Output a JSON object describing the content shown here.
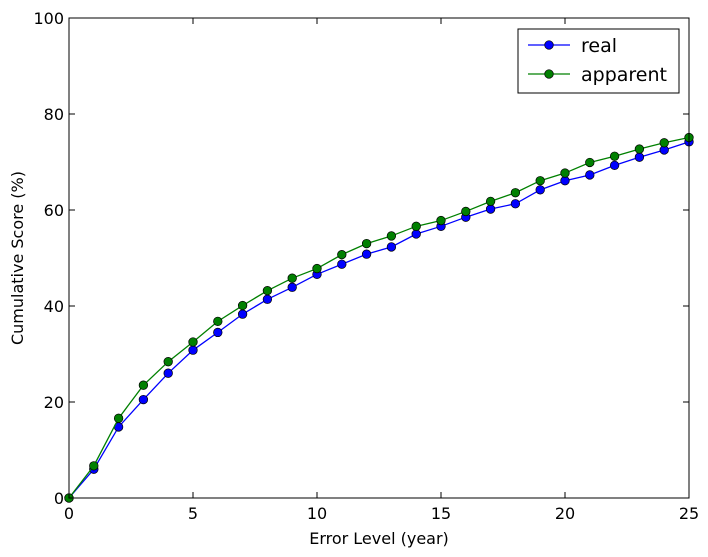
{
  "chart_data": {
    "type": "line",
    "title": "",
    "xlabel": "Error Level (year)",
    "ylabel": "Cumulative Score (%)",
    "xlim": [
      0,
      25
    ],
    "ylim": [
      0,
      100
    ],
    "xticks": [
      0,
      5,
      10,
      15,
      20,
      25
    ],
    "yticks": [
      0,
      20,
      40,
      60,
      80,
      100
    ],
    "xtick_labels": [
      "0",
      "5",
      "10",
      "15",
      "20",
      "25"
    ],
    "ytick_labels": [
      "0",
      "20",
      "40",
      "60",
      "80",
      "100"
    ],
    "grid": false,
    "legend_position": "top-right",
    "x": [
      0,
      1,
      2,
      3,
      4,
      5,
      6,
      7,
      8,
      9,
      10,
      11,
      12,
      13,
      14,
      15,
      16,
      17,
      18,
      19,
      20,
      21,
      22,
      23,
      24,
      25
    ],
    "series": [
      {
        "name": "real",
        "color": "#0000ff",
        "marker": "circle",
        "values": [
          0,
          6.0,
          14.8,
          20.5,
          26.0,
          30.8,
          34.5,
          38.3,
          41.4,
          43.9,
          46.6,
          48.7,
          50.8,
          52.3,
          55.0,
          56.6,
          58.5,
          60.2,
          61.3,
          64.2,
          66.1,
          67.3,
          69.3,
          71.0,
          72.5,
          74.2
        ]
      },
      {
        "name": "apparent",
        "color": "#008000",
        "marker": "circle",
        "values": [
          0,
          6.7,
          16.6,
          23.5,
          28.4,
          32.5,
          36.8,
          40.1,
          43.2,
          45.8,
          47.8,
          50.7,
          53.0,
          54.6,
          56.6,
          57.8,
          59.7,
          61.8,
          63.6,
          66.1,
          67.7,
          69.9,
          71.2,
          72.7,
          74.0,
          75.1
        ]
      }
    ]
  }
}
